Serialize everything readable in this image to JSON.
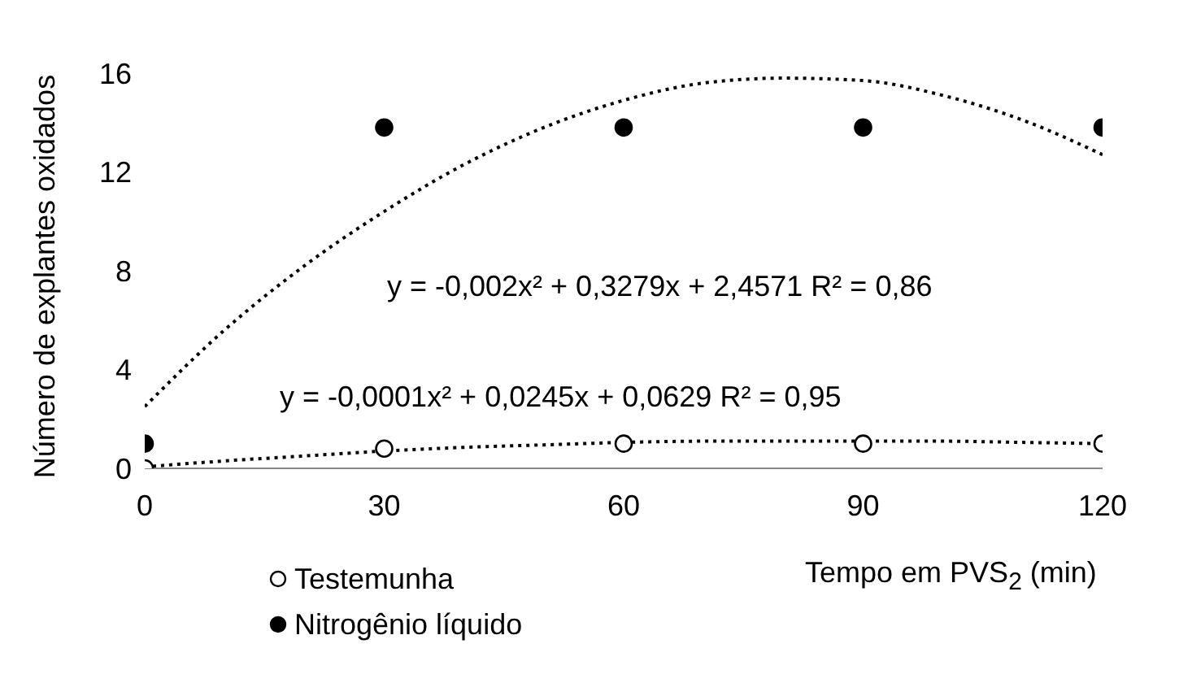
{
  "chart_data": {
    "type": "scatter",
    "xlabel": "Tempo em PVS$_{2}$ (min)",
    "ylabel": "Número de explantes oxidados",
    "xlim": [
      0,
      120
    ],
    "xticks": [
      0,
      30,
      60,
      90,
      120
    ],
    "ylim": [
      0,
      16
    ],
    "yticks": [
      0,
      4,
      8,
      12,
      16
    ],
    "grid": false,
    "legend": "bottom left",
    "series": [
      {
        "name": "Testemunha",
        "marker": "circle",
        "color": "#ffffff",
        "x": [
          0,
          30,
          60,
          90,
          120
        ],
        "values": [
          0,
          0.8,
          1,
          1,
          1
        ]
      },
      {
        "name": "Nitrogênio líquido",
        "marker": "circle",
        "color": "#000000",
        "x": [
          0,
          30,
          60,
          90,
          120
        ],
        "values": [
          1,
          13.8,
          13.8,
          13.8,
          13.8
        ]
      },
      {
        "type": "line",
        "line_style": "dotted",
        "color": "#000000",
        "x": [
          0,
          10,
          20,
          30,
          40,
          50,
          60,
          70,
          80,
          90,
          100,
          110,
          120
        ],
        "values": [
          0.06,
          0.3,
          0.5,
          0.7,
          0.85,
          0.95,
          1.05,
          1.1,
          1.1,
          1.1,
          1.1,
          1.05,
          1
        ]
      },
      {
        "type": "line",
        "line_style": "dotted",
        "color": "#000000",
        "x": [
          0,
          10,
          20,
          30,
          40,
          50,
          60,
          70,
          80,
          90,
          100,
          110,
          120
        ],
        "values": [
          2.5,
          5.6,
          8.2,
          10.4,
          12.3,
          13.8,
          14.9,
          15.6,
          15.8,
          15.7,
          15.1,
          14.1,
          12.7
        ]
      }
    ],
    "annotations": [
      "y = -0,002x² + 0,3279x + 2,4571  R² = 0,86",
      "y = -0,0001x² + 0,0245x + 0,0629  R² = 0,95"
    ]
  }
}
